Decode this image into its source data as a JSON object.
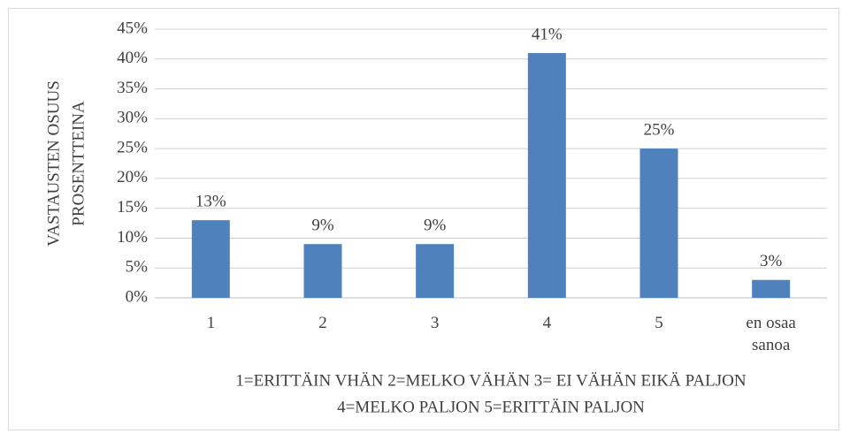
{
  "chart_data": {
    "type": "bar",
    "ylabel": [
      "VASTAUSTEN OSUUS",
      "PROSENTTEINA"
    ],
    "xlabel": [
      "1=ERITTÄIN VHÄN 2=MELKO VÄHÄN 3= EI VÄHÄN EIKÄ PALJON",
      "4=MELKO PALJON 5=ERITTÄIN PALJON"
    ],
    "categories": [
      "1",
      "2",
      "3",
      "4",
      "5",
      "en osaa sanoa"
    ],
    "values": [
      13,
      9,
      9,
      41,
      25,
      3
    ],
    "value_labels": [
      "13%",
      "9%",
      "9%",
      "41%",
      "25%",
      "3%"
    ],
    "color": "#4f81bd",
    "ylim": [
      0,
      45
    ],
    "yticks": [
      {
        "value": 0,
        "label": "0%"
      },
      {
        "value": 5,
        "label": "5%"
      },
      {
        "value": 10,
        "label": "10%"
      },
      {
        "value": 15,
        "label": "15%"
      },
      {
        "value": 20,
        "label": "20%"
      },
      {
        "value": 25,
        "label": "25%"
      },
      {
        "value": 30,
        "label": "30%"
      },
      {
        "value": 35,
        "label": "35%"
      },
      {
        "value": 40,
        "label": "40%"
      },
      {
        "value": 45,
        "label": "45%"
      }
    ],
    "grid": true
  }
}
